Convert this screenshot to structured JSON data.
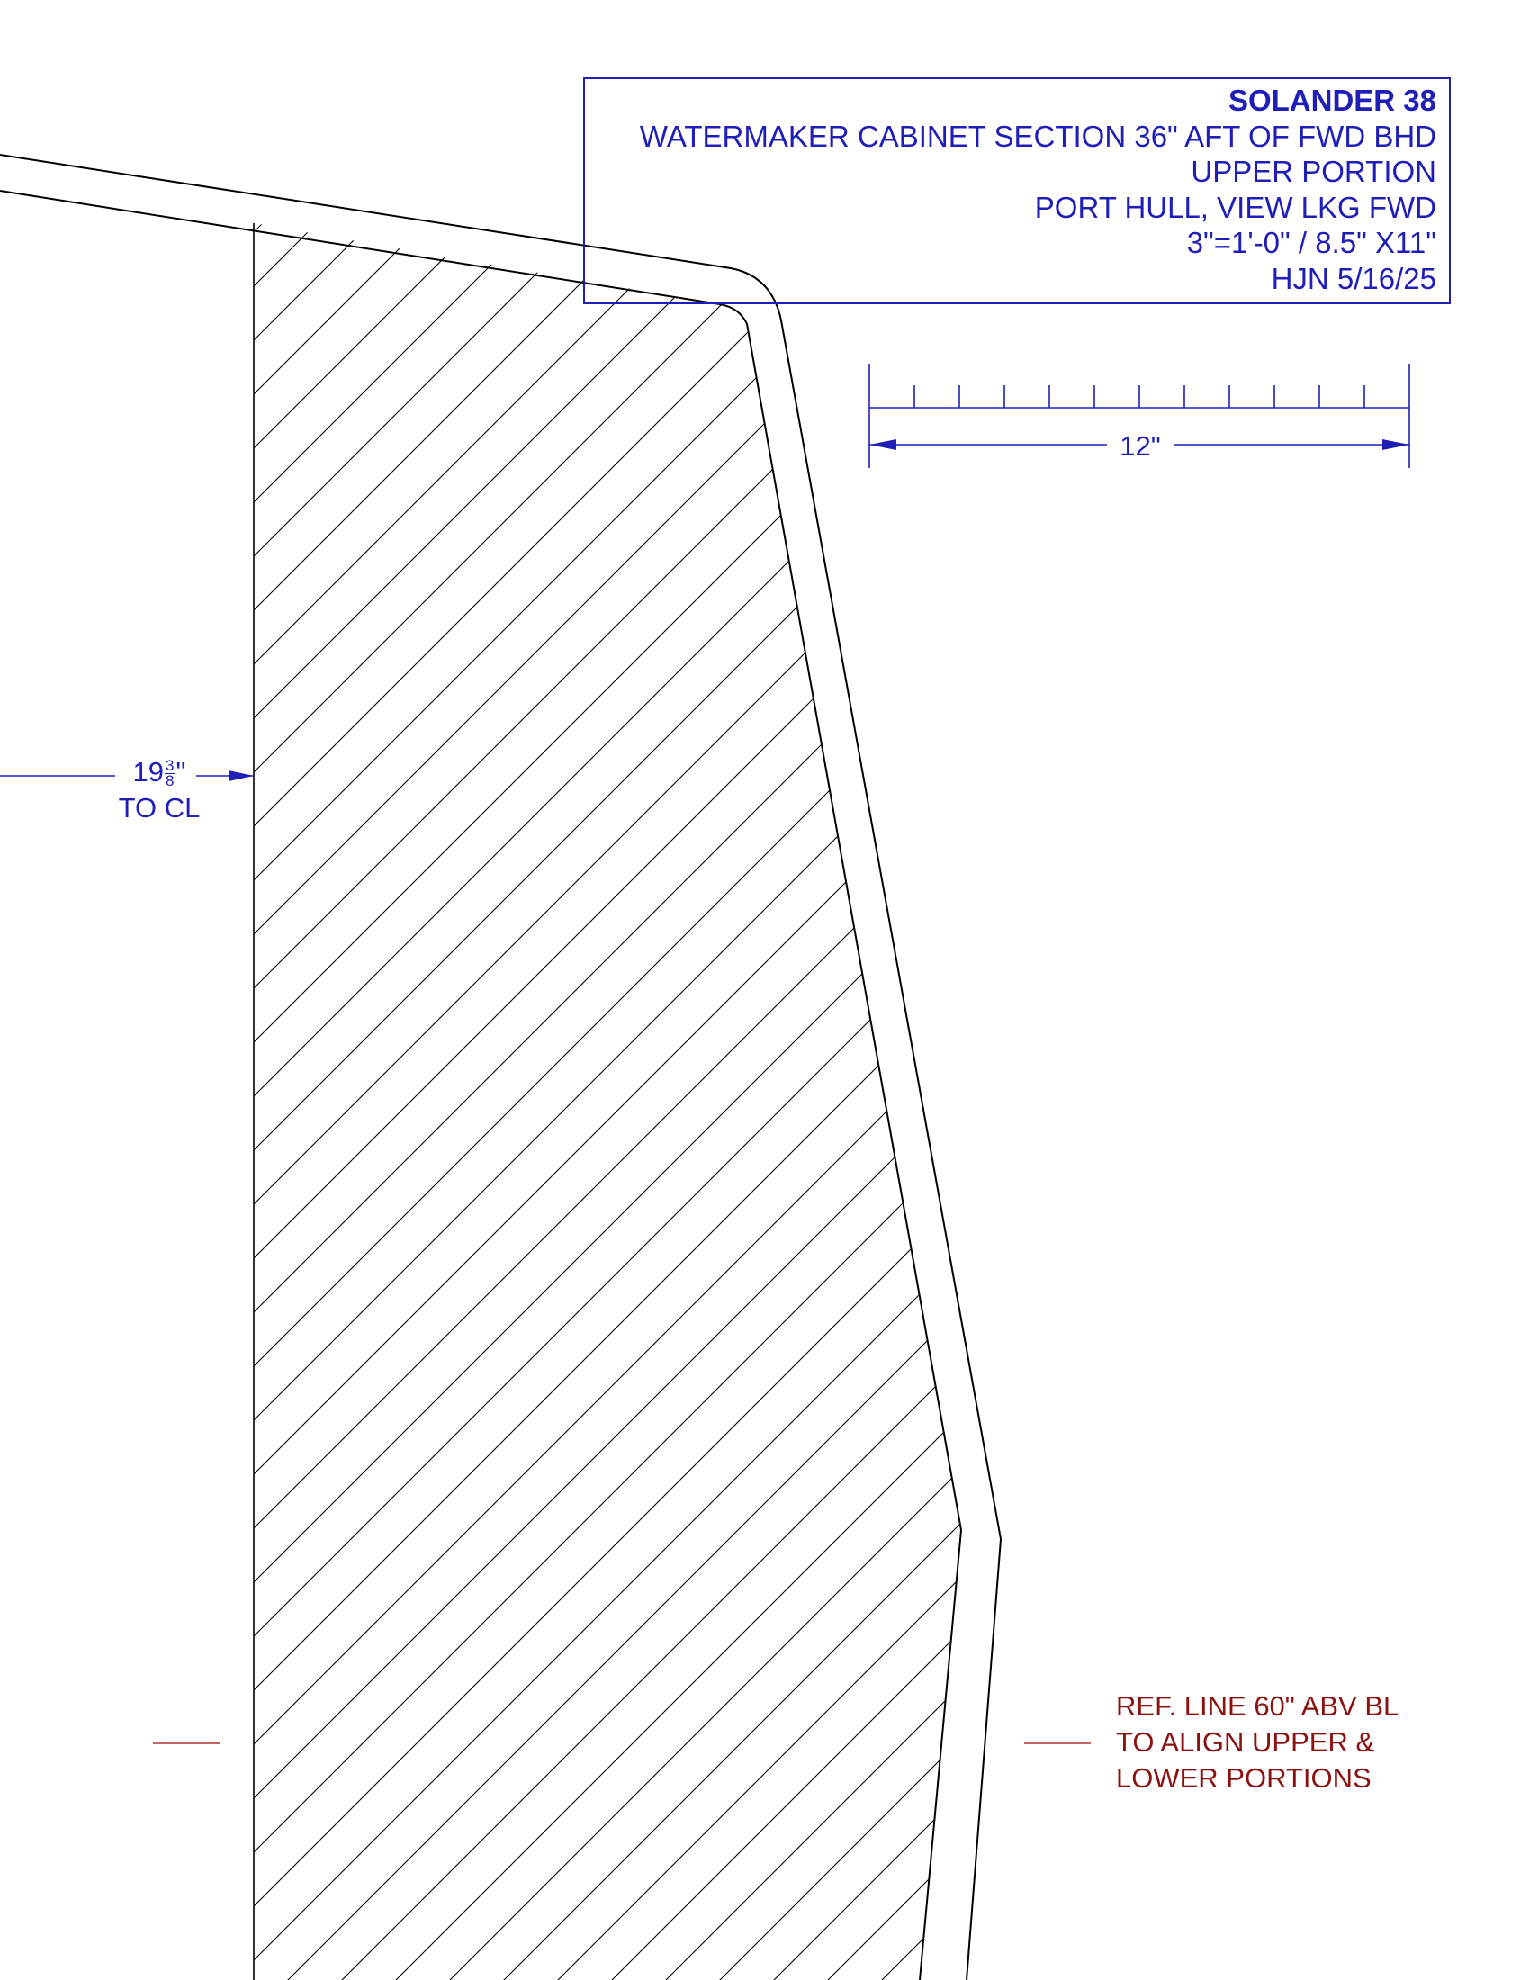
{
  "title_block": {
    "lines": [
      "SOLANDER 38",
      "WATERMAKER CABINET SECTION 36\" AFT OF FWD BHD",
      "UPPER PORTION",
      "PORT HULL, VIEW LKG FWD",
      "3\"=1'-0\" / 8.5\" X11\"",
      "HJN 5/16/25"
    ]
  },
  "scale_bar": {
    "label": "12\"",
    "length_in": 12,
    "divisions": 12
  },
  "centerline_dim": {
    "whole": "19",
    "frac_num": "3",
    "frac_den": "8",
    "unit": "\"",
    "note": "TO CL"
  },
  "ref_note": {
    "lines": [
      "REF. LINE 60\" ABV BL",
      "TO ALIGN UPPER &",
      "LOWER PORTIONS"
    ]
  },
  "colors": {
    "annotation": "#1f1fb8",
    "reference": "#8b1010",
    "geometry": "#000000"
  }
}
